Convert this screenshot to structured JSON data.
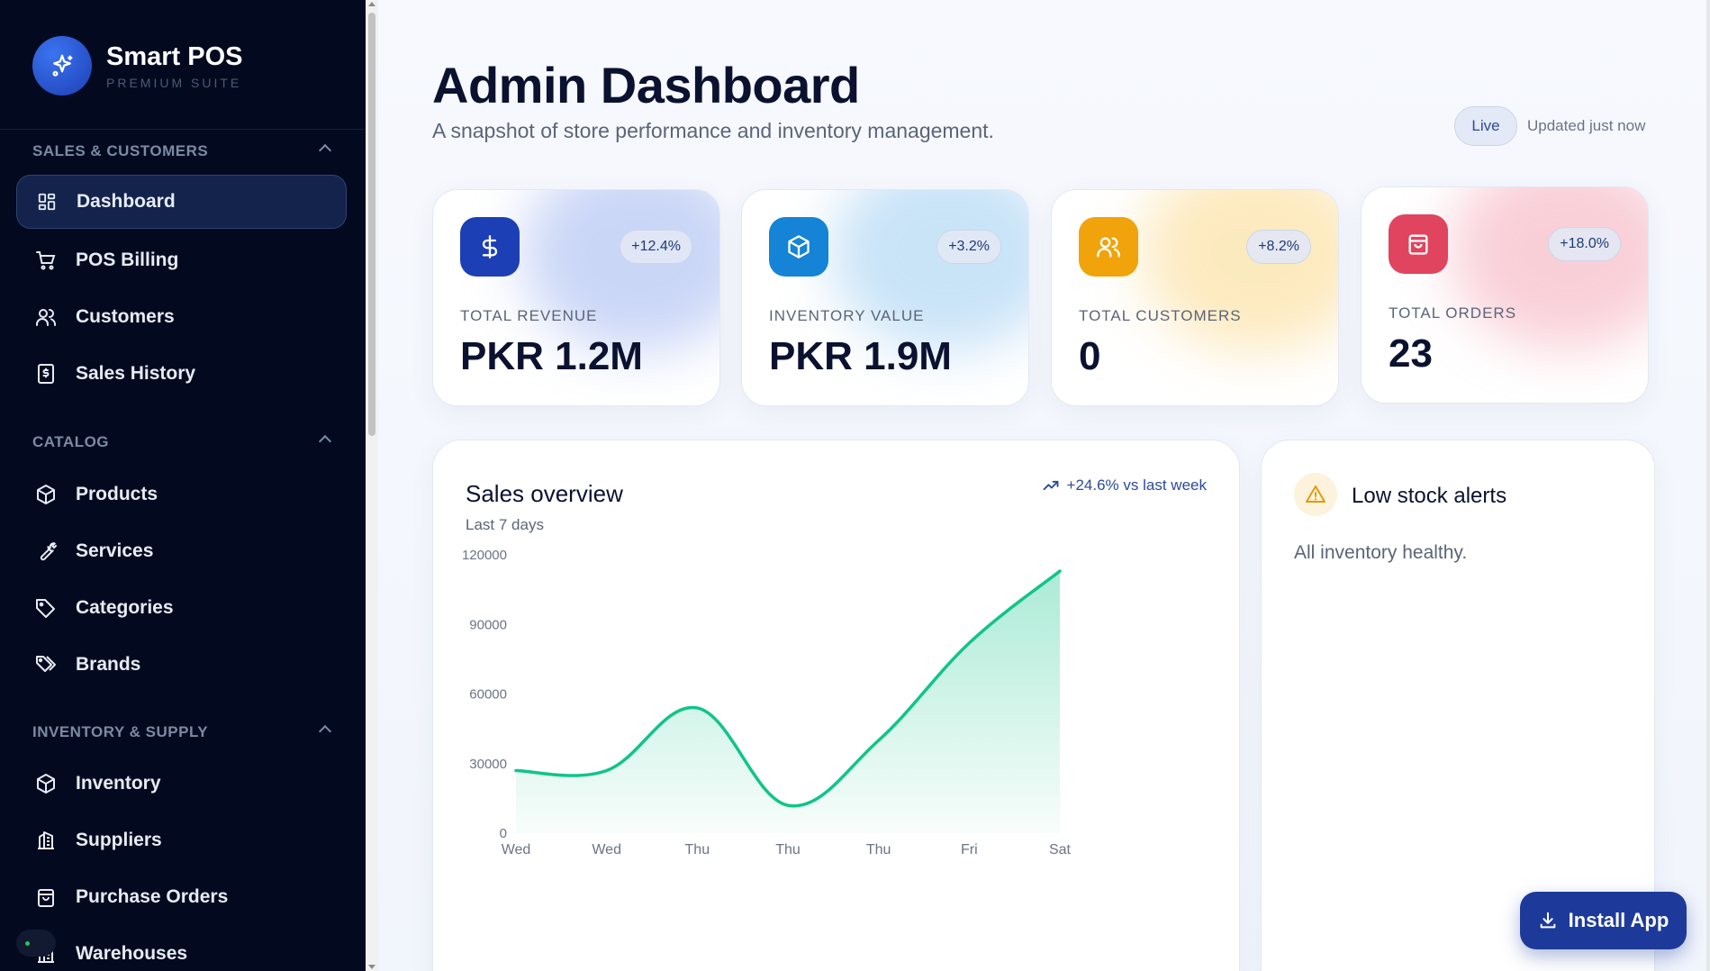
{
  "brand": {
    "name": "Smart POS",
    "subtitle": "PREMIUM SUITE"
  },
  "sidebar": {
    "sections": [
      {
        "title": "SALES & CUSTOMERS",
        "items": [
          {
            "label": "Dashboard",
            "icon": "grid-icon",
            "active": true
          },
          {
            "label": "POS Billing",
            "icon": "cart-icon"
          },
          {
            "label": "Customers",
            "icon": "users-icon"
          },
          {
            "label": "Sales History",
            "icon": "receipt-icon"
          }
        ]
      },
      {
        "title": "CATALOG",
        "items": [
          {
            "label": "Products",
            "icon": "box-icon"
          },
          {
            "label": "Services",
            "icon": "wrench-icon"
          },
          {
            "label": "Categories",
            "icon": "tag-icon"
          },
          {
            "label": "Brands",
            "icon": "tags-icon"
          }
        ]
      },
      {
        "title": "INVENTORY & SUPPLY",
        "items": [
          {
            "label": "Inventory",
            "icon": "box-icon"
          },
          {
            "label": "Suppliers",
            "icon": "building-icon"
          },
          {
            "label": "Purchase Orders",
            "icon": "bag-icon"
          },
          {
            "label": "Warehouses",
            "icon": "warehouse-icon"
          }
        ]
      }
    ]
  },
  "header": {
    "title": "Admin Dashboard",
    "subtitle": "A snapshot of store performance and inventory management.",
    "live_label": "Live",
    "updated_text": "Updated just now"
  },
  "stats": [
    {
      "label": "TOTAL REVENUE",
      "value": "PKR 1.2M",
      "change": "+12.4%",
      "icon": "dollar-icon",
      "color": "#1d3fb5",
      "glow": "#9fb5f0"
    },
    {
      "label": "INVENTORY VALUE",
      "value": "PKR 1.9M",
      "change": "+3.2%",
      "icon": "cube-icon",
      "color": "#1583d6",
      "glow": "#9dcdf2"
    },
    {
      "label": "TOTAL CUSTOMERS",
      "value": "0",
      "change": "+8.2%",
      "icon": "users-icon",
      "color": "#f0a30a",
      "glow": "#fbd98c"
    },
    {
      "label": "TOTAL ORDERS",
      "value": "23",
      "change": "+18.0%",
      "icon": "bag-icon",
      "color": "#e0445e",
      "glow": "#f5a9b8"
    }
  ],
  "sales_overview": {
    "title": "Sales overview",
    "subtitle": "Last 7 days",
    "trend": "+24.6% vs last week"
  },
  "chart_data": {
    "type": "area",
    "categories": [
      "Wed",
      "Wed",
      "Thu",
      "Thu",
      "Thu",
      "Fri",
      "Sat"
    ],
    "values": [
      27000,
      27000,
      54000,
      12000,
      40000,
      82000,
      113000
    ],
    "yticks": [
      "0",
      "30000",
      "60000",
      "90000",
      "120000"
    ],
    "ylim": [
      0,
      120000
    ],
    "line_color": "#10c48a"
  },
  "low_stock": {
    "title": "Low stock alerts",
    "message": "All inventory healthy."
  },
  "install": {
    "label": "Install App"
  }
}
